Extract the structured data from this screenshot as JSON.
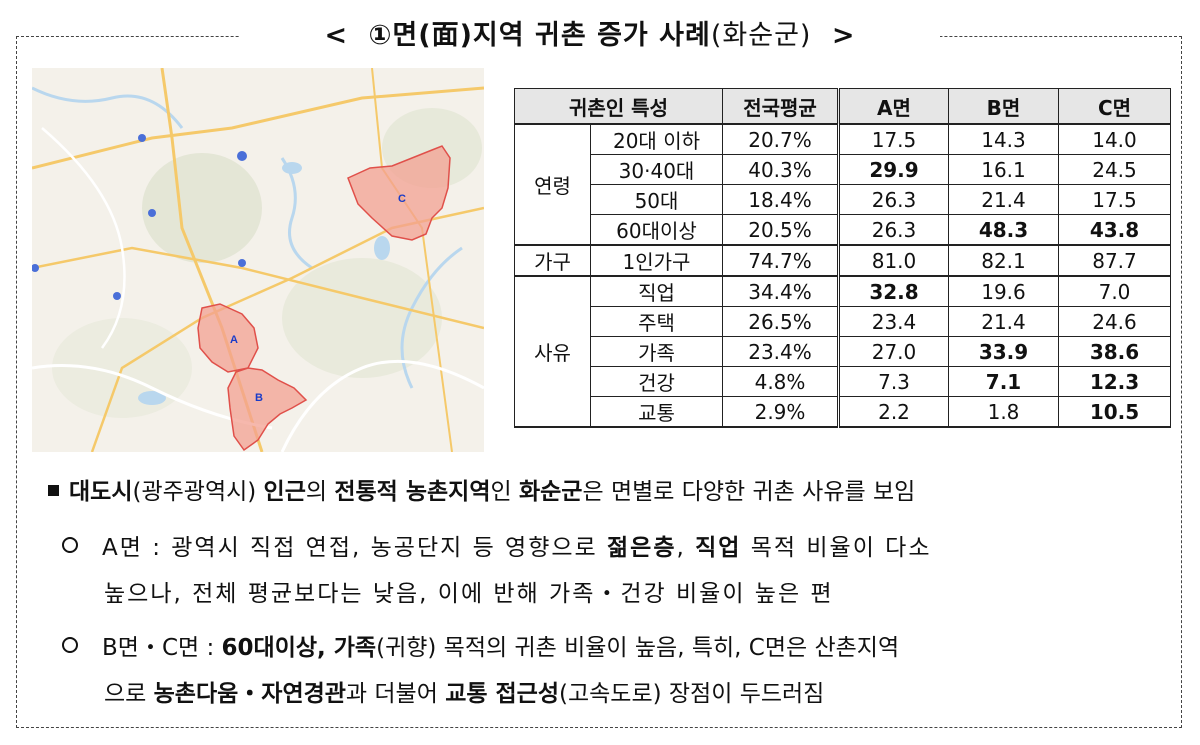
{
  "title": {
    "open": "<",
    "main": "①면(面)지역 귀촌 증가 사례",
    "suffix": "(화순군)",
    "close": ">"
  },
  "map": {
    "labels": {
      "a": "A",
      "b": "B",
      "c": "C"
    },
    "colors": {
      "region_fill": "#f3a092",
      "region_stroke": "#e0504a",
      "label": "#1a3cc8"
    }
  },
  "table": {
    "headers": [
      "귀촌인 특성",
      "전국평균",
      "A면",
      "B면",
      "C면"
    ],
    "groups": [
      {
        "name": "연령",
        "rows": [
          {
            "label": "20대 이하",
            "cells": [
              {
                "v": "20.7%"
              },
              {
                "v": "17.5"
              },
              {
                "v": "14.3"
              },
              {
                "v": "14.0"
              }
            ]
          },
          {
            "label": "30·40대",
            "cells": [
              {
                "v": "40.3%"
              },
              {
                "v": "29.9",
                "b": true
              },
              {
                "v": "16.1"
              },
              {
                "v": "24.5"
              }
            ]
          },
          {
            "label": "50대",
            "cells": [
              {
                "v": "18.4%"
              },
              {
                "v": "26.3"
              },
              {
                "v": "21.4"
              },
              {
                "v": "17.5"
              }
            ]
          },
          {
            "label": "60대이상",
            "cells": [
              {
                "v": "20.5%"
              },
              {
                "v": "26.3"
              },
              {
                "v": "48.3",
                "b": true
              },
              {
                "v": "43.8",
                "b": true
              }
            ]
          }
        ]
      },
      {
        "name": "가구",
        "rows": [
          {
            "label": "1인가구",
            "cells": [
              {
                "v": "74.7%"
              },
              {
                "v": "81.0"
              },
              {
                "v": "82.1"
              },
              {
                "v": "87.7"
              }
            ]
          }
        ]
      },
      {
        "name": "사유",
        "rows": [
          {
            "label": "직업",
            "cells": [
              {
                "v": "34.4%"
              },
              {
                "v": "32.8",
                "b": true
              },
              {
                "v": "19.6"
              },
              {
                "v": "7.0"
              }
            ]
          },
          {
            "label": "주택",
            "cells": [
              {
                "v": "26.5%"
              },
              {
                "v": "23.4"
              },
              {
                "v": "21.4"
              },
              {
                "v": "24.6"
              }
            ]
          },
          {
            "label": "가족",
            "cells": [
              {
                "v": "23.4%"
              },
              {
                "v": "27.0"
              },
              {
                "v": "33.9",
                "b": true
              },
              {
                "v": "38.6",
                "b": true
              }
            ]
          },
          {
            "label": "건강",
            "cells": [
              {
                "v": "4.8%"
              },
              {
                "v": "7.3"
              },
              {
                "v": "7.1",
                "b": true
              },
              {
                "v": "12.3",
                "b": true
              }
            ]
          },
          {
            "label": "교통",
            "cells": [
              {
                "v": "2.9%"
              },
              {
                "v": "2.2"
              },
              {
                "v": "1.8"
              },
              {
                "v": "10.5",
                "b": true
              }
            ]
          }
        ]
      }
    ]
  },
  "bullets": {
    "main": {
      "p1": "대도시",
      "p2": "(광주광역시) ",
      "p3": "인근",
      "p4": "의 ",
      "p5": "전통적 농촌지역",
      "p6": "인 ",
      "p7": "화순군",
      "p8": "은 면별로 다양한 귀촌 사유를 보임"
    },
    "a": {
      "p1": "A면 : 광역시 직접 연접, 농공단지 등 영향으로 ",
      "p2": "젊은층",
      "p3": ", ",
      "p4": "직업",
      "p5": " 목적 비율이 다소",
      "line2": "높으나, 전체 평균보다는 낮음, 이에 반해 가족・건강 비율이 높은 편"
    },
    "bc": {
      "p1": "B면・C면 : ",
      "p2": "60대이상, 가족",
      "p3": "(귀향) 목적의 귀촌 비율이 높음, 특히, C면은 산촌지역",
      "l2a": "으로 ",
      "l2b": "농촌다움・자연경관",
      "l2c": "과 더불어 ",
      "l2d": "교통 접근성",
      "l2e": "(고속도로) 장점이 두드러짐"
    }
  }
}
